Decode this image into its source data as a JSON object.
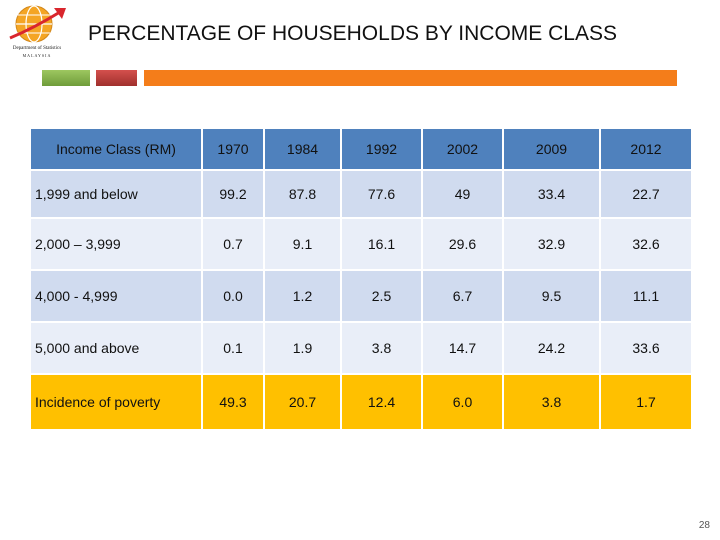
{
  "logo": {
    "line1": "Department of Statistics",
    "line2": "MALAYSIA"
  },
  "title": "PERCENTAGE OF HOUSEHOLDS BY INCOME CLASS",
  "colors": {
    "header": "#4f81bd",
    "row_odd": "#d0dbef",
    "row_even": "#e9eef8",
    "poverty": "#ffc000",
    "accent_green": "#8bb34d",
    "accent_red": "#c0403d",
    "accent_orange": "#f47d1a"
  },
  "table": {
    "headers": [
      "Income Class (RM)",
      "1970",
      "1984",
      "1992",
      "2002",
      "2009",
      "2012"
    ],
    "rows": [
      {
        "label": "1,999 and below",
        "values": [
          "99.2",
          "87.8",
          "77.6",
          "49",
          "33.4",
          "22.7"
        ]
      },
      {
        "label": "2,000 – 3,999",
        "values": [
          "0.7",
          "9.1",
          "16.1",
          "29.6",
          "32.9",
          "32.6"
        ]
      },
      {
        "label": "4,000 - 4,999",
        "values": [
          "0.0",
          "1.2",
          "2.5",
          "6.7",
          "9.5",
          "11.1"
        ]
      },
      {
        "label": "5,000 and above",
        "values": [
          "0.1",
          "1.9",
          "3.8",
          "14.7",
          "24.2",
          "33.6"
        ]
      },
      {
        "label": "Incidence of poverty",
        "values": [
          "49.3",
          "20.7",
          "12.4",
          "6.0",
          "3.8",
          "1.7"
        ]
      }
    ]
  },
  "page_number": "28"
}
